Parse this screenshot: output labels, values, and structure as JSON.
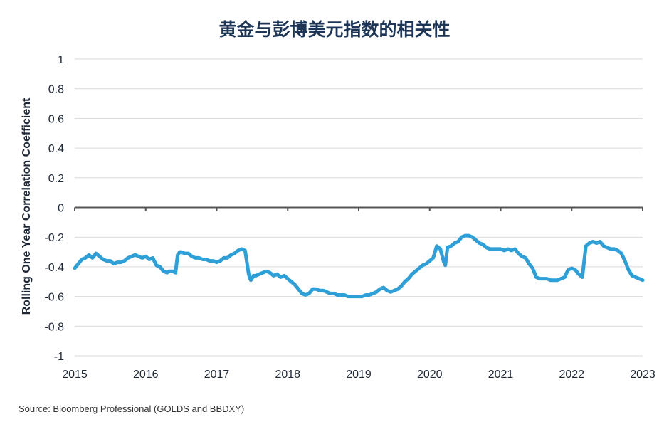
{
  "title": "黄金与彭博美元指数的相关性",
  "source": "Source: Bloomberg Professional (GOLDS and BBDXY)",
  "colors": {
    "line": "#2f9fd8",
    "grid": "#d9d9d9",
    "axis": "#555555",
    "title": "#1d3557",
    "text": "#1f2937"
  },
  "chart_data": {
    "type": "line",
    "title": "黄金与彭博美元指数的相关性",
    "xlabel": "",
    "ylabel": "Rolling One Year Correlation Coefficient",
    "xlim": [
      2015,
      2023
    ],
    "ylim": [
      -1,
      1
    ],
    "grid": true,
    "x_ticks": [
      "2015",
      "2016",
      "2017",
      "2018",
      "2019",
      "2020",
      "2021",
      "2022",
      "2023"
    ],
    "y_ticks": [
      "1",
      "0.8",
      "0.6",
      "0.4",
      "0.2",
      "0",
      "-0.2",
      "-0.4",
      "-0.6",
      "-0.8",
      "-1"
    ],
    "series": [
      {
        "color": "#2f9fd8",
        "x": [
          2015.0,
          2015.05,
          2015.1,
          2015.15,
          2015.2,
          2015.25,
          2015.3,
          2015.35,
          2015.4,
          2015.45,
          2015.5,
          2015.55,
          2015.6,
          2015.65,
          2015.7,
          2015.75,
          2015.8,
          2015.85,
          2015.9,
          2015.95,
          2016.0,
          2016.05,
          2016.1,
          2016.15,
          2016.2,
          2016.25,
          2016.3,
          2016.33,
          2016.38,
          2016.42,
          2016.45,
          2016.48,
          2016.5,
          2016.55,
          2016.6,
          2016.65,
          2016.7,
          2016.75,
          2016.8,
          2016.85,
          2016.9,
          2016.95,
          2017.0,
          2017.05,
          2017.1,
          2017.15,
          2017.2,
          2017.25,
          2017.3,
          2017.35,
          2017.4,
          2017.45,
          2017.47,
          2017.48,
          2017.52,
          2017.55,
          2017.6,
          2017.65,
          2017.7,
          2017.75,
          2017.8,
          2017.85,
          2017.9,
          2017.95,
          2018.0,
          2018.05,
          2018.1,
          2018.15,
          2018.2,
          2018.25,
          2018.3,
          2018.35,
          2018.4,
          2018.45,
          2018.5,
          2018.55,
          2018.6,
          2018.65,
          2018.7,
          2018.75,
          2018.8,
          2018.85,
          2018.9,
          2018.95,
          2019.0,
          2019.05,
          2019.1,
          2019.15,
          2019.2,
          2019.25,
          2019.3,
          2019.35,
          2019.4,
          2019.45,
          2019.5,
          2019.55,
          2019.6,
          2019.65,
          2019.7,
          2019.75,
          2019.8,
          2019.85,
          2019.9,
          2019.95,
          2020.0,
          2020.05,
          2020.1,
          2020.15,
          2020.2,
          2020.22,
          2020.25,
          2020.3,
          2020.35,
          2020.4,
          2020.45,
          2020.5,
          2020.55,
          2020.6,
          2020.65,
          2020.7,
          2020.75,
          2020.8,
          2020.85,
          2020.9,
          2020.95,
          2021.0,
          2021.05,
          2021.1,
          2021.15,
          2021.2,
          2021.25,
          2021.3,
          2021.35,
          2021.4,
          2021.45,
          2021.5,
          2021.55,
          2021.6,
          2021.65,
          2021.7,
          2021.75,
          2021.8,
          2021.85,
          2021.9,
          2021.95,
          2022.0,
          2022.05,
          2022.1,
          2022.15,
          2022.2,
          2022.25,
          2022.3,
          2022.35,
          2022.4,
          2022.45,
          2022.5,
          2022.55,
          2022.6,
          2022.65,
          2022.7,
          2022.75,
          2022.8,
          2022.85,
          2022.9,
          2022.95,
          2023.0
        ],
        "y": [
          -0.41,
          -0.38,
          -0.35,
          -0.34,
          -0.32,
          -0.34,
          -0.31,
          -0.33,
          -0.35,
          -0.36,
          -0.36,
          -0.38,
          -0.37,
          -0.37,
          -0.36,
          -0.34,
          -0.33,
          -0.32,
          -0.33,
          -0.34,
          -0.33,
          -0.35,
          -0.34,
          -0.39,
          -0.4,
          -0.43,
          -0.44,
          -0.43,
          -0.43,
          -0.44,
          -0.32,
          -0.3,
          -0.3,
          -0.31,
          -0.31,
          -0.33,
          -0.34,
          -0.34,
          -0.35,
          -0.35,
          -0.36,
          -0.36,
          -0.37,
          -0.36,
          -0.34,
          -0.34,
          -0.32,
          -0.31,
          -0.29,
          -0.28,
          -0.29,
          -0.45,
          -0.48,
          -0.49,
          -0.46,
          -0.46,
          -0.45,
          -0.44,
          -0.43,
          -0.44,
          -0.46,
          -0.45,
          -0.47,
          -0.46,
          -0.48,
          -0.5,
          -0.52,
          -0.55,
          -0.58,
          -0.59,
          -0.58,
          -0.55,
          -0.55,
          -0.56,
          -0.56,
          -0.57,
          -0.58,
          -0.58,
          -0.59,
          -0.59,
          -0.59,
          -0.6,
          -0.6,
          -0.6,
          -0.6,
          -0.6,
          -0.59,
          -0.59,
          -0.58,
          -0.57,
          -0.55,
          -0.54,
          -0.56,
          -0.57,
          -0.56,
          -0.55,
          -0.53,
          -0.5,
          -0.48,
          -0.45,
          -0.43,
          -0.41,
          -0.39,
          -0.38,
          -0.36,
          -0.34,
          -0.26,
          -0.28,
          -0.37,
          -0.39,
          -0.27,
          -0.26,
          -0.24,
          -0.23,
          -0.2,
          -0.19,
          -0.19,
          -0.2,
          -0.22,
          -0.24,
          -0.25,
          -0.27,
          -0.28,
          -0.28,
          -0.28,
          -0.28,
          -0.29,
          -0.28,
          -0.29,
          -0.28,
          -0.31,
          -0.33,
          -0.34,
          -0.38,
          -0.41,
          -0.47,
          -0.48,
          -0.48,
          -0.48,
          -0.49,
          -0.49,
          -0.49,
          -0.48,
          -0.47,
          -0.42,
          -0.41,
          -0.42,
          -0.45,
          -0.47,
          -0.26,
          -0.24,
          -0.23,
          -0.24,
          -0.23,
          -0.26,
          -0.27,
          -0.28,
          -0.28,
          -0.29,
          -0.31,
          -0.36,
          -0.42,
          -0.46,
          -0.47,
          -0.48,
          -0.49
        ]
      }
    ]
  }
}
